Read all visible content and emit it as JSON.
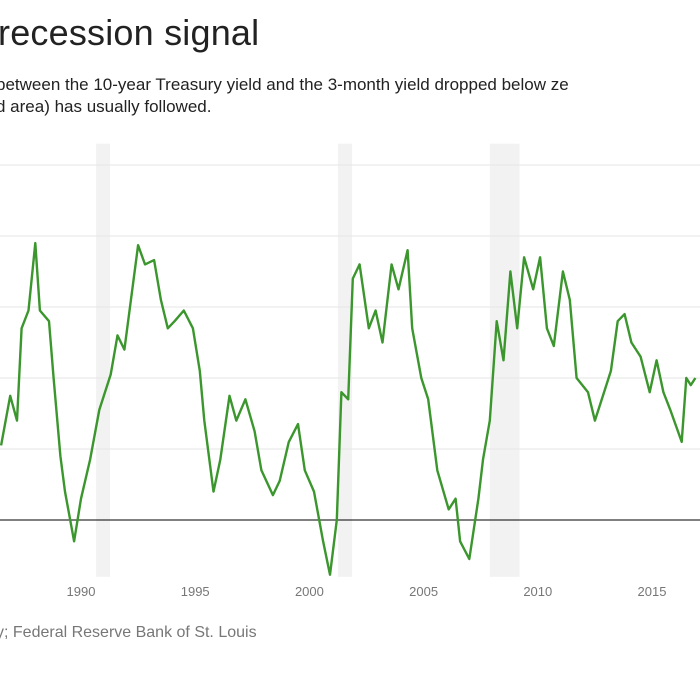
{
  "title": "recession signal",
  "subtitle_lines": [
    "between the 10-year Treasury yield and the 3-month yield dropped below ze",
    "d area) has usually followed."
  ],
  "source": "y; Federal Reserve Bank of St. Louis",
  "colors": {
    "line": "#3b962d",
    "recession": "#f2f2f2",
    "grid": "#e6e6e6",
    "zero": "#000000"
  },
  "chart_data": {
    "type": "line",
    "title": "recession signal",
    "xlabel": "",
    "ylabel": "",
    "xlim": [
      1986.5,
      2016.9
    ],
    "ylim": [
      -0.8,
      5.3
    ],
    "x_ticks": [
      1990,
      1995,
      2000,
      2005,
      2010,
      2015
    ],
    "x_tick_labels": [
      "1990",
      "1995",
      "2000",
      "2005",
      "2010",
      "2015"
    ],
    "y_gridlines": [
      1,
      2,
      3,
      4,
      5
    ],
    "zero_line": 0,
    "grid": true,
    "recession_periods": [
      [
        1990.66,
        1991.27
      ],
      [
        2001.25,
        2001.87
      ],
      [
        2007.9,
        2009.2
      ]
    ],
    "series": [
      {
        "x": [
          1986.5,
          1986.9,
          1987.2,
          1987.4,
          1987.7,
          1988.0,
          1988.2,
          1988.6,
          1988.8,
          1989.1,
          1989.3,
          1989.7,
          1990.0,
          1990.4,
          1990.8,
          1991.3,
          1991.6,
          1991.9,
          1992.5,
          1992.8,
          1993.2,
          1993.5,
          1993.8,
          1994.1,
          1994.5,
          1994.9,
          1995.2,
          1995.4,
          1995.8,
          1996.1,
          1996.5,
          1996.8,
          1997.2,
          1997.6,
          1997.9,
          1998.4,
          1998.7,
          1999.1,
          1999.5,
          1999.8,
          2000.2,
          2000.6,
          2000.9,
          2001.2,
          2001.4,
          2001.7,
          2001.9,
          2002.2,
          2002.6,
          2002.9,
          2003.2,
          2003.6,
          2003.9,
          2004.3,
          2004.5,
          2004.9,
          2005.2,
          2005.6,
          2006.1,
          2006.4,
          2006.6,
          2007.0,
          2007.4,
          2007.6,
          2007.9,
          2008.2,
          2008.5,
          2008.8,
          2009.1,
          2009.4,
          2009.8,
          2010.1,
          2010.4,
          2010.7,
          2011.1,
          2011.4,
          2011.7,
          2012.2,
          2012.5,
          2012.8,
          2013.2,
          2013.5,
          2013.8,
          2014.1,
          2014.5,
          2014.9,
          2015.2,
          2015.5,
          2015.8,
          2016.3,
          2016.5,
          2016.7,
          2016.9
        ],
        "y": [
          1.05,
          1.75,
          1.4,
          2.7,
          2.95,
          3.9,
          2.95,
          2.8,
          2.0,
          0.9,
          0.4,
          -0.3,
          0.3,
          0.85,
          1.55,
          2.05,
          2.6,
          2.4,
          3.87,
          3.6,
          3.66,
          3.1,
          2.7,
          2.8,
          2.95,
          2.7,
          2.1,
          1.4,
          0.4,
          0.85,
          1.75,
          1.4,
          1.7,
          1.25,
          0.7,
          0.35,
          0.55,
          1.1,
          1.35,
          0.7,
          0.4,
          -0.3,
          -0.77,
          0.0,
          1.8,
          1.7,
          3.4,
          3.6,
          2.7,
          2.95,
          2.5,
          3.6,
          3.25,
          3.8,
          2.7,
          2.0,
          1.7,
          0.7,
          0.15,
          0.3,
          -0.3,
          -0.55,
          0.3,
          0.85,
          1.4,
          2.8,
          2.25,
          3.5,
          2.7,
          3.7,
          3.25,
          3.7,
          2.7,
          2.45,
          3.5,
          3.1,
          2.0,
          1.8,
          1.4,
          1.7,
          2.1,
          2.8,
          2.9,
          2.5,
          2.3,
          1.8,
          2.25,
          1.8,
          1.55,
          1.1,
          2.0,
          1.9,
          2.0
        ]
      }
    ]
  }
}
